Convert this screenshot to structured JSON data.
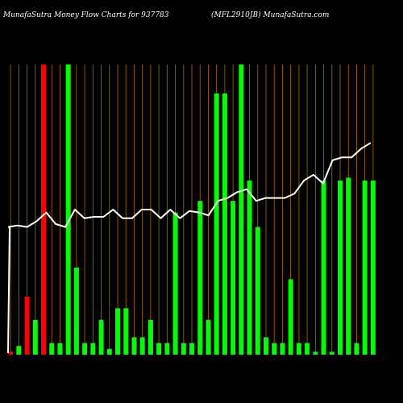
{
  "header": {
    "left": "MunafaSutra  Money Flow  Charts for 937783",
    "right": "(MFL2910JB) MunafaSutra.com"
  },
  "colors": {
    "background": "#000000",
    "up": "#00ff00",
    "down": "#ff0000",
    "line": "#ffffff",
    "grid": "#b36b00"
  },
  "chart_data": {
    "type": "bar",
    "grid": "vertical",
    "series": [
      {
        "kind": "bar",
        "values": [
          1,
          3,
          20,
          12,
          100,
          4,
          4,
          100,
          30,
          4,
          4,
          12,
          2,
          16,
          16,
          6,
          6,
          12,
          4,
          4,
          49,
          4,
          4,
          53,
          12,
          90,
          90,
          53,
          100,
          60,
          44,
          6,
          4,
          4,
          26,
          4,
          4,
          1,
          60,
          1,
          60,
          61,
          4,
          60,
          60
        ],
        "colors": [
          "down",
          "up",
          "down",
          "up",
          "down",
          "up",
          "up",
          "up",
          "up",
          "up",
          "up",
          "up",
          "up",
          "up",
          "up",
          "up",
          "up",
          "up",
          "up",
          "up",
          "up",
          "up",
          "up",
          "up",
          "up",
          "up",
          "up",
          "up",
          "up",
          "up",
          "up",
          "up",
          "up",
          "up",
          "up",
          "up",
          "up",
          "up",
          "up",
          "up",
          "up",
          "up",
          "up",
          "up",
          "up"
        ]
      },
      {
        "kind": "line",
        "values": [
          44,
          44.5,
          44,
          46,
          49,
          45,
          44,
          50,
          47,
          47.5,
          47.5,
          50,
          47,
          47,
          50,
          50,
          47,
          50,
          47,
          49.5,
          49,
          48,
          53,
          54,
          56,
          57,
          53,
          54,
          54,
          54,
          55.5,
          60,
          62,
          59,
          67,
          68,
          68,
          71,
          73
        ]
      }
    ]
  }
}
